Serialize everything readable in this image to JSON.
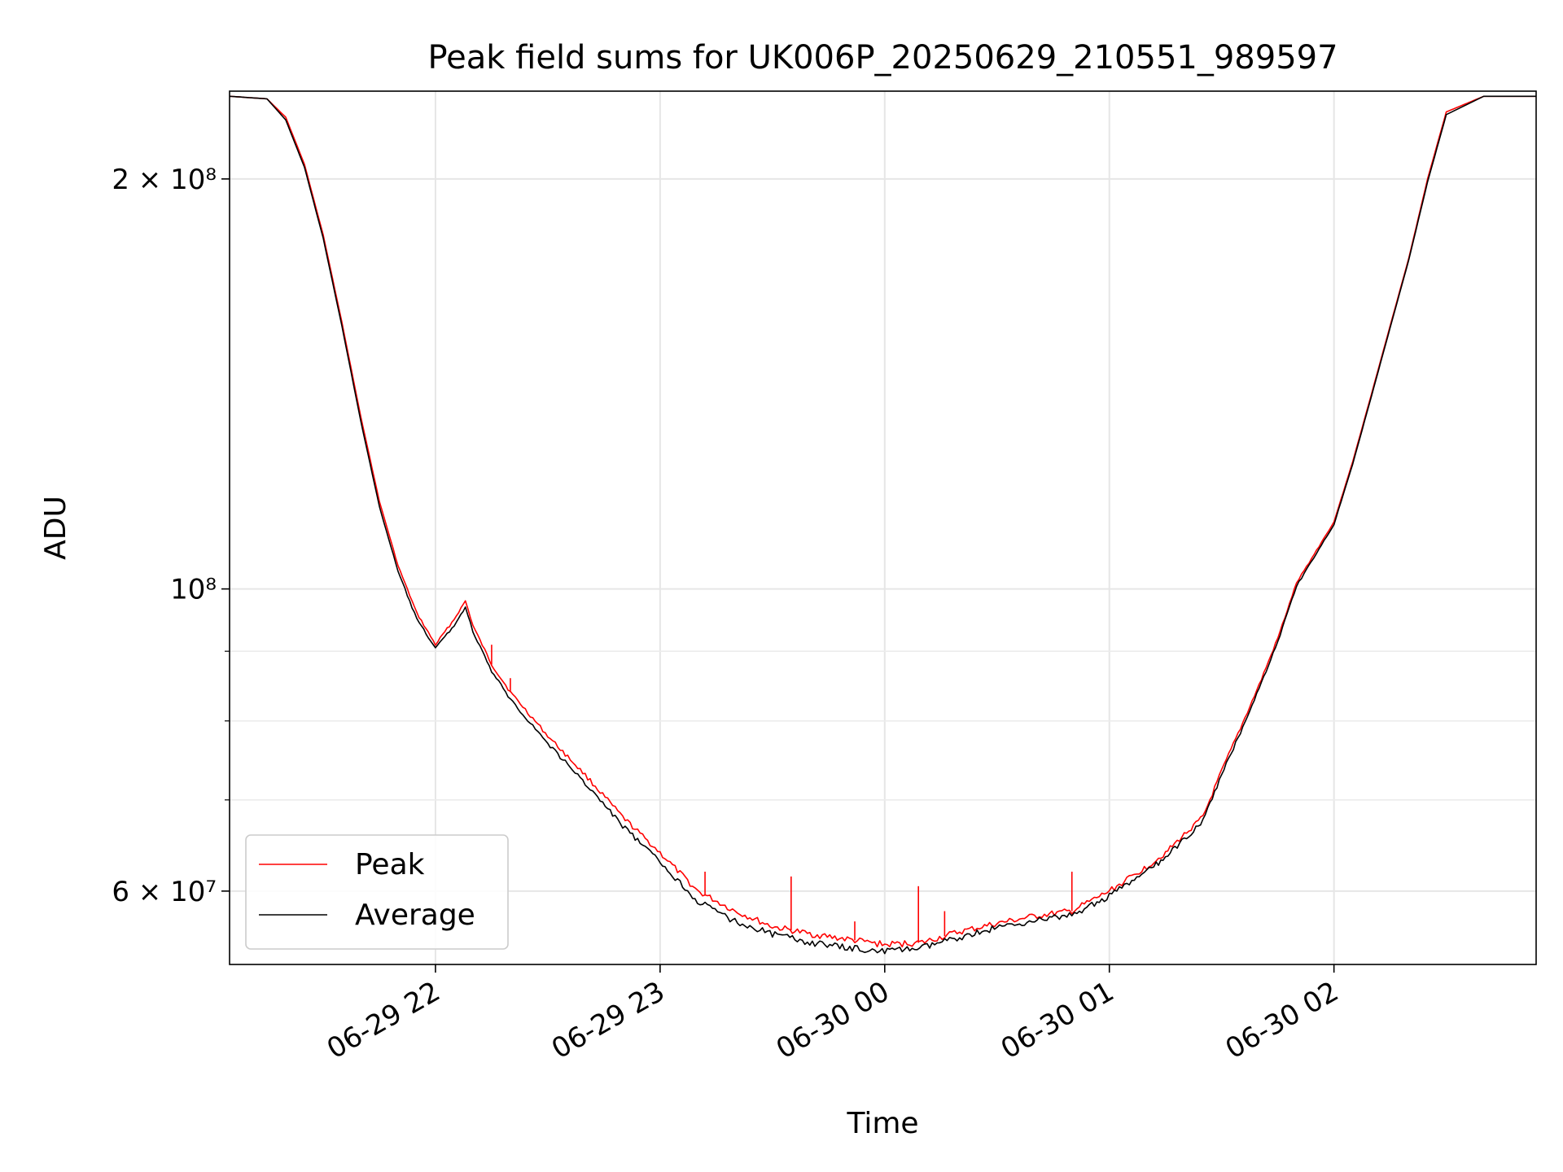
{
  "chart_data": {
    "type": "line",
    "title": "Peak field sums for UK006P_20250629_210551_989597",
    "xlabel": "Time",
    "ylabel": "ADU",
    "yscale": "log",
    "xlim": [
      "2025-06-29 21:05",
      "2025-06-30 02:54"
    ],
    "ylim": [
      53000000.0,
      232000000.0
    ],
    "grid": true,
    "legend": {
      "placement": "lower left",
      "entries": [
        "Peak",
        "Average"
      ]
    },
    "x_ticks": [
      {
        "label": "06-29 22",
        "value": "2025-06-29 22:00"
      },
      {
        "label": "06-29 23",
        "value": "2025-06-29 23:00"
      },
      {
        "label": "06-30 00",
        "value": "2025-06-30 00:00"
      },
      {
        "label": "06-30 01",
        "value": "2025-06-30 01:00"
      },
      {
        "label": "06-30 02",
        "value": "2025-06-30 02:00"
      }
    ],
    "y_ticks": [
      {
        "label": "2 × 10⁸",
        "value": 200000000
      },
      {
        "label": "10⁸",
        "value": 100000000
      },
      {
        "label": "6 × 10⁷",
        "value": 60000000
      }
    ],
    "y_minor_ticks": [
      70000000,
      80000000,
      90000000
    ],
    "series": [
      {
        "name": "Peak",
        "color": "#ff0000",
        "x": [
          "2025-06-29 21:05",
          "2025-06-29 21:15",
          "2025-06-29 21:20",
          "2025-06-29 21:25",
          "2025-06-29 21:30",
          "2025-06-29 21:35",
          "2025-06-29 21:40",
          "2025-06-29 21:45",
          "2025-06-29 21:50",
          "2025-06-29 21:55",
          "2025-06-29 22:00",
          "2025-06-29 22:05",
          "2025-06-29 22:08",
          "2025-06-29 22:10",
          "2025-06-29 22:15",
          "2025-06-29 22:20",
          "2025-06-29 22:30",
          "2025-06-29 22:40",
          "2025-06-29 22:50",
          "2025-06-29 23:00",
          "2025-06-29 23:10",
          "2025-06-29 23:20",
          "2025-06-29 23:30",
          "2025-06-29 23:40",
          "2025-06-29 23:50",
          "2025-06-30 00:00",
          "2025-06-30 00:10",
          "2025-06-30 00:20",
          "2025-06-30 00:30",
          "2025-06-30 00:40",
          "2025-06-30 00:50",
          "2025-06-30 01:00",
          "2025-06-30 01:10",
          "2025-06-30 01:15",
          "2025-06-30 01:20",
          "2025-06-30 01:25",
          "2025-06-30 01:30",
          "2025-06-30 01:35",
          "2025-06-30 01:40",
          "2025-06-30 01:45",
          "2025-06-30 01:50",
          "2025-06-30 02:00",
          "2025-06-30 02:05",
          "2025-06-30 02:10",
          "2025-06-30 02:15",
          "2025-06-30 02:20",
          "2025-06-30 02:25",
          "2025-06-30 02:30",
          "2025-06-30 02:40",
          "2025-06-30 02:54"
        ],
        "y": [
          230000000,
          229000000,
          222000000,
          205000000,
          182000000,
          157000000,
          134000000,
          116000000,
          104000000,
          96000000,
          91000000,
          95000000,
          98000000,
          94000000,
          88000000,
          84000000,
          78000000,
          73000000,
          68000000,
          64000000,
          60000000,
          58000000,
          56500000,
          55800000,
          55300000,
          54800000,
          55000000,
          56000000,
          56800000,
          57500000,
          58000000,
          60000000,
          62500000,
          64000000,
          66000000,
          68000000,
          73500000,
          79000000,
          85000000,
          92000000,
          101000000,
          112000000,
          124000000,
          139000000,
          156000000,
          175000000,
          200000000,
          224000000,
          230000000,
          230000000
        ]
      },
      {
        "name": "Average",
        "color": "#000000",
        "x": [
          "2025-06-29 21:05",
          "2025-06-29 21:15",
          "2025-06-29 21:20",
          "2025-06-29 21:25",
          "2025-06-29 21:30",
          "2025-06-29 21:35",
          "2025-06-29 21:40",
          "2025-06-29 21:45",
          "2025-06-29 21:50",
          "2025-06-29 21:55",
          "2025-06-29 22:00",
          "2025-06-29 22:05",
          "2025-06-29 22:08",
          "2025-06-29 22:10",
          "2025-06-29 22:15",
          "2025-06-29 22:20",
          "2025-06-29 22:30",
          "2025-06-29 22:40",
          "2025-06-29 22:50",
          "2025-06-29 23:00",
          "2025-06-29 23:10",
          "2025-06-29 23:20",
          "2025-06-29 23:30",
          "2025-06-29 23:40",
          "2025-06-29 23:50",
          "2025-06-30 00:00",
          "2025-06-30 00:10",
          "2025-06-30 00:20",
          "2025-06-30 00:30",
          "2025-06-30 00:40",
          "2025-06-30 00:50",
          "2025-06-30 01:00",
          "2025-06-30 01:10",
          "2025-06-30 01:15",
          "2025-06-30 01:20",
          "2025-06-30 01:25",
          "2025-06-30 01:30",
          "2025-06-30 01:35",
          "2025-06-30 01:40",
          "2025-06-30 01:45",
          "2025-06-30 01:50",
          "2025-06-30 02:00",
          "2025-06-30 02:05",
          "2025-06-30 02:10",
          "2025-06-30 02:15",
          "2025-06-30 02:20",
          "2025-06-30 02:25",
          "2025-06-30 02:30",
          "2025-06-30 02:40",
          "2025-06-30 02:54"
        ],
        "y": [
          230000000,
          229000000,
          221000000,
          204000000,
          181000000,
          156000000,
          133000000,
          115000000,
          103000000,
          95000000,
          90500000,
          94000000,
          97000000,
          93000000,
          87000000,
          83000000,
          77000000,
          72000000,
          67000000,
          63000000,
          59000000,
          57000000,
          55800000,
          55000000,
          54500000,
          54200000,
          54500000,
          55500000,
          56400000,
          57100000,
          57600000,
          59500000,
          62000000,
          63500000,
          65500000,
          67500000,
          73000000,
          78500000,
          84500000,
          91500000,
          100500000,
          111500000,
          123500000,
          138500000,
          155500000,
          174500000,
          199000000,
          223000000,
          230000000,
          230000000
        ]
      }
    ],
    "annotations": [
      {
        "series": "Peak",
        "x": "2025-06-29 22:15",
        "y": 91000000
      },
      {
        "series": "Peak",
        "x": "2025-06-29 22:20",
        "y": 86000000
      },
      {
        "series": "Peak",
        "x": "2025-06-29 23:12",
        "y": 62000000
      },
      {
        "series": "Peak",
        "x": "2025-06-29 23:35",
        "y": 61500000
      },
      {
        "series": "Peak",
        "x": "2025-06-29 23:52",
        "y": 57000000
      },
      {
        "series": "Peak",
        "x": "2025-06-30 00:09",
        "y": 60500000
      },
      {
        "series": "Peak",
        "x": "2025-06-30 00:16",
        "y": 58000000
      },
      {
        "series": "Peak",
        "x": "2025-06-30 00:50",
        "y": 62000000
      }
    ]
  }
}
